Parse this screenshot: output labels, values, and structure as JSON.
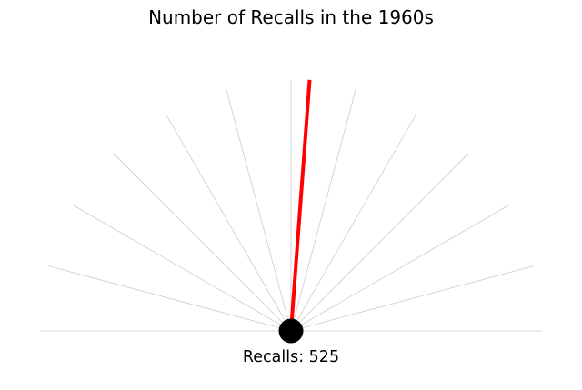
{
  "chart_data": {
    "type": "gauge",
    "title": "Number of Recalls in the 1960s",
    "value_label": "Recalls: 525",
    "value": 525,
    "spoke_count": 13,
    "colors": {
      "needle": "#ff0000",
      "hub": "#000000",
      "spokes": "#cccccc",
      "background": "#ffffff"
    }
  }
}
